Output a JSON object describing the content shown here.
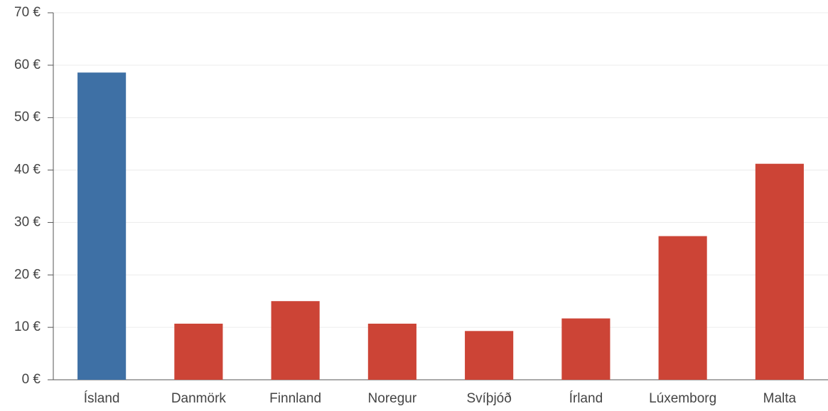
{
  "chart_data": {
    "type": "bar",
    "categories": [
      "Ísland",
      "Danmörk",
      "Finnland",
      "Noregur",
      "Svíþjóð",
      "Írland",
      "Lúxemborg",
      "Malta"
    ],
    "values": [
      58.6,
      10.7,
      15.0,
      10.7,
      9.3,
      11.7,
      27.4,
      41.2
    ],
    "colors": [
      "#3e70a5",
      "#cc4436",
      "#cc4436",
      "#cc4436",
      "#cc4436",
      "#cc4436",
      "#cc4436",
      "#cc4436"
    ],
    "ylim": [
      0,
      70
    ],
    "yticks": [
      {
        "value": 0,
        "label": "0 €"
      },
      {
        "value": 10,
        "label": "10 €"
      },
      {
        "value": 20,
        "label": "20 €"
      },
      {
        "value": 30,
        "label": "30 €"
      },
      {
        "value": 40,
        "label": "40 €"
      },
      {
        "value": 50,
        "label": "50 €"
      },
      {
        "value": 60,
        "label": "60 €"
      },
      {
        "value": 70,
        "label": "70 €"
      }
    ],
    "grid": true
  }
}
